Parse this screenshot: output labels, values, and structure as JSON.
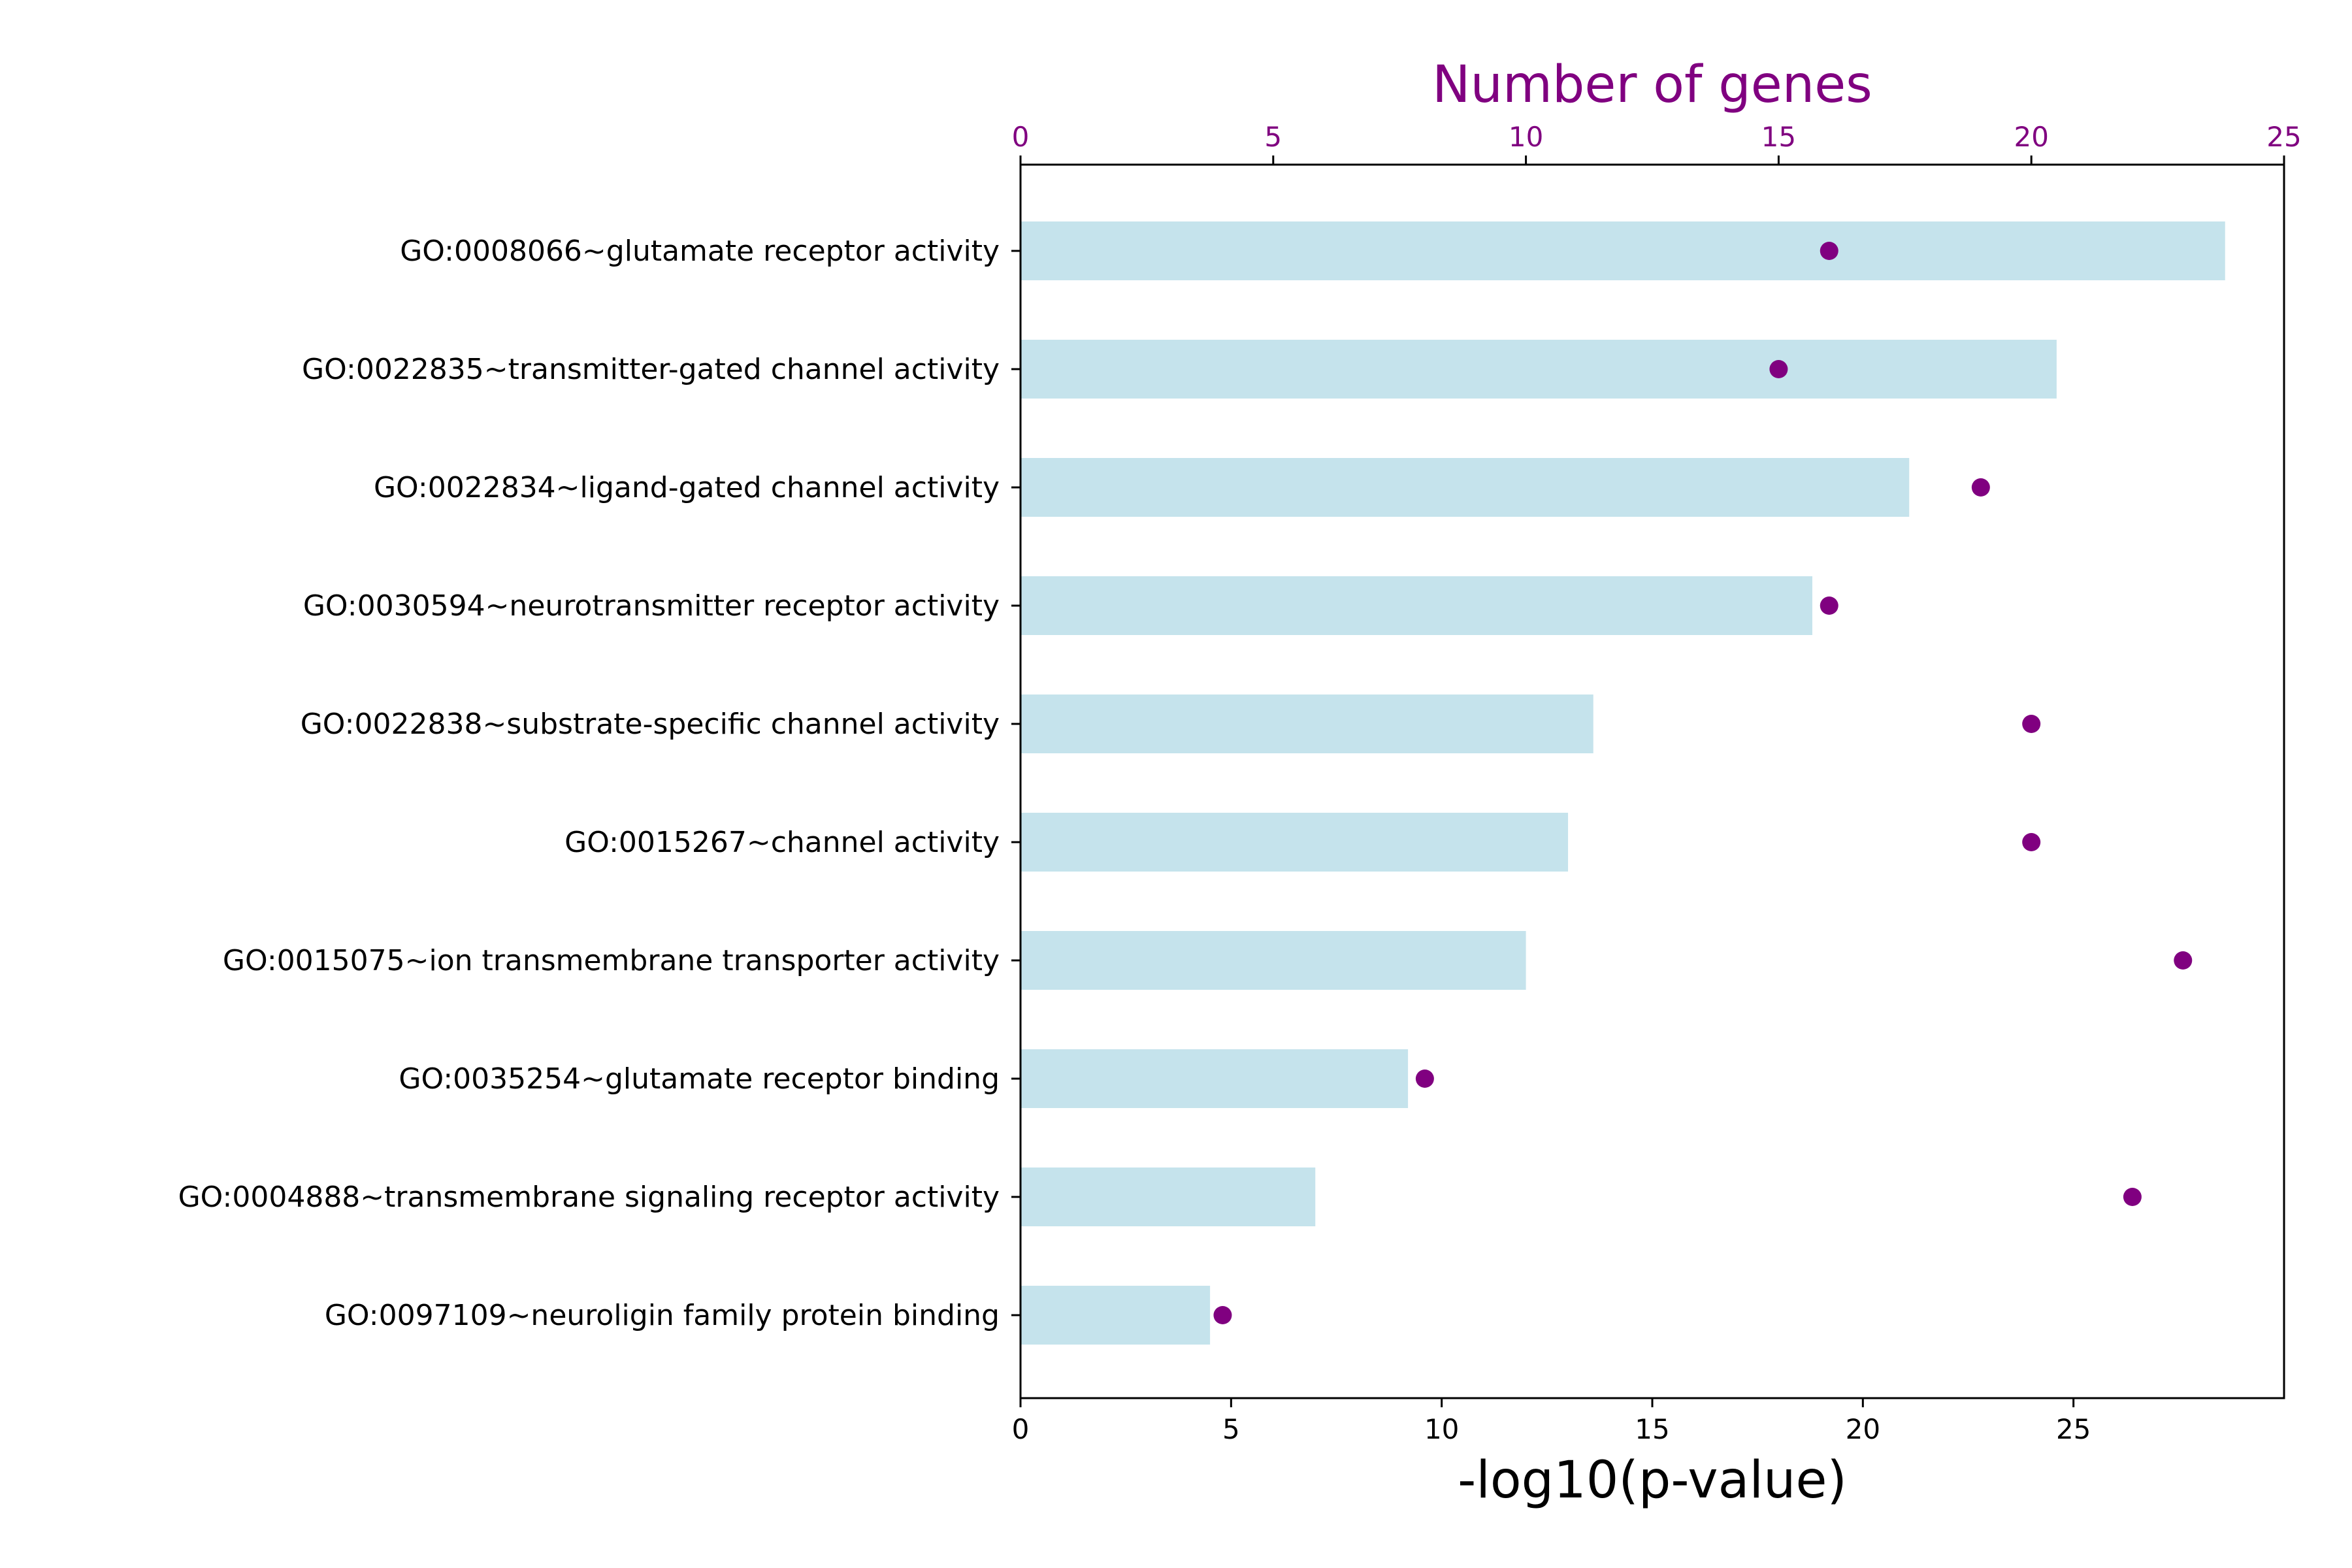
{
  "colors": {
    "bar": "#c5e3ec",
    "dot": "#800080",
    "axis": "#000000",
    "top_axis_text": "#800080"
  },
  "chart_data": {
    "type": "bar",
    "orientation": "horizontal",
    "categories": [
      "GO:0008066~glutamate receptor activity",
      "GO:0022835~transmitter-gated channel activity",
      "GO:0022834~ligand-gated channel activity",
      "GO:0030594~neurotransmitter receptor activity",
      "GO:0022838~substrate-specific channel activity",
      "GO:0015267~channel activity",
      "GO:0015075~ion transmembrane transporter activity",
      "GO:0035254~glutamate receptor binding",
      "GO:0004888~transmembrane signaling receptor activity",
      "GO:0097109~neuroligin family protein binding"
    ],
    "series": [
      {
        "axis": "bottom",
        "mark": "bar",
        "values": [
          28.6,
          24.6,
          21.1,
          18.8,
          13.6,
          13.0,
          12.0,
          9.2,
          7.0,
          4.5
        ]
      },
      {
        "axis": "top",
        "mark": "dot",
        "values": [
          16,
          15,
          19,
          16,
          20,
          20,
          23,
          8,
          22,
          4
        ]
      }
    ],
    "xlabel": "-log10(p-value)",
    "x2label": "Number of genes",
    "xlim": [
      0,
      30
    ],
    "x2lim": [
      0,
      25
    ],
    "x_ticks": [
      "0",
      "5",
      "10",
      "15",
      "20",
      "25"
    ],
    "x2_ticks": [
      "0",
      "5",
      "10",
      "15",
      "20",
      "25"
    ],
    "grid": false,
    "legend": "none"
  }
}
